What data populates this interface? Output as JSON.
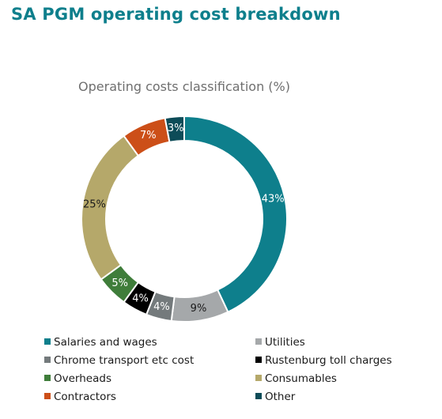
{
  "page": {
    "title": "SA PGM operating cost breakdown"
  },
  "chart_data": {
    "type": "pie",
    "donut": true,
    "title": "Operating costs classification (%)",
    "legend_position": "bottom",
    "slices": [
      {
        "label": "Salaries and wages",
        "value": 43,
        "value_label": "43%",
        "color": "#0e7f8c",
        "label_color": "#ffffff"
      },
      {
        "label": "Utilities",
        "value": 9,
        "value_label": "9%",
        "color": "#a5a8aa",
        "label_color": "#1a1a1a"
      },
      {
        "label": "Chrome transport etc cost",
        "value": 4,
        "value_label": "4%",
        "color": "#747a7c",
        "label_color": "#ffffff"
      },
      {
        "label": "Rustenburg toll charges",
        "value": 4,
        "value_label": "4%",
        "color": "#000000",
        "label_color": "#ffffff"
      },
      {
        "label": "Overheads",
        "value": 5,
        "value_label": "5%",
        "color": "#3f7d3a",
        "label_color": "#ffffff"
      },
      {
        "label": "Consumables",
        "value": 25,
        "value_label": "25%",
        "color": "#b5a86a",
        "label_color": "#1a1a1a"
      },
      {
        "label": "Contractors",
        "value": 7,
        "value_label": "7%",
        "color": "#cc4f18",
        "label_color": "#ffffff"
      },
      {
        "label": "Other",
        "value": 3,
        "value_label": "3%",
        "color": "#0d4c58",
        "label_color": "#ffffff"
      }
    ],
    "legend_order": [
      "Salaries and wages",
      "Utilities",
      "Chrome transport etc cost",
      "Rustenburg toll charges",
      "Overheads",
      "Consumables",
      "Contractors",
      "Other"
    ]
  }
}
